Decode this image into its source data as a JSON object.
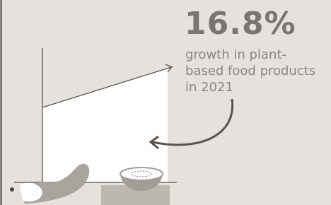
{
  "stat": {
    "value": "16.8%",
    "description_lines": [
      "growth in plant-",
      "based food products",
      "in 2021"
    ]
  }
}
